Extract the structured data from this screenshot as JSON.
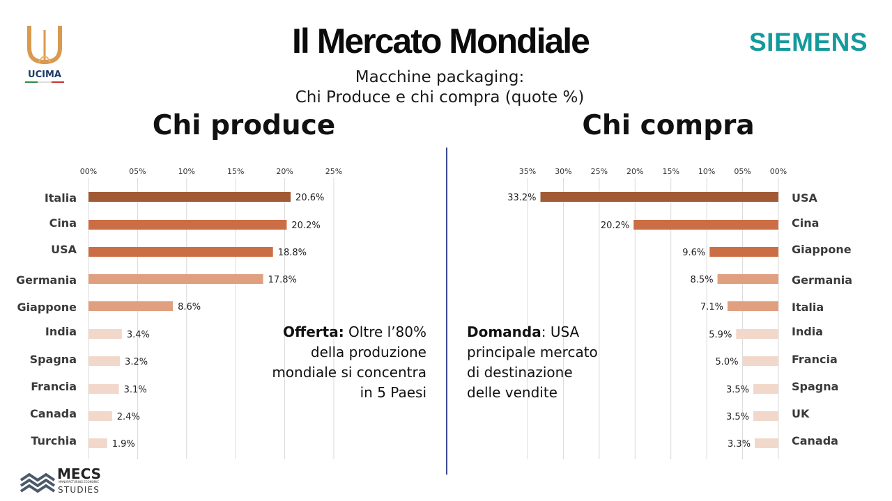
{
  "header": {
    "title": "Il Mercato Mondiale",
    "subtitle_line1": "Macchine packaging:",
    "subtitle_line2": "Chi Produce e chi compra (quote %)"
  },
  "logos": {
    "ucima": "UCIMA",
    "siemens": "SIEMENS",
    "mecs_line1": "MECS",
    "mecs_line2": "STUDIES",
    "mecs_tiny": "MANUFACTURING ECONOMIC"
  },
  "notes": {
    "offerta_bold": "Offerta:",
    "offerta_text": "Oltre l’80% della produzione mondiale si concentra in 5 Paesi",
    "domanda_bold": "Domanda",
    "domanda_text": ": USA principale mercato di destinazione delle vendite"
  },
  "colors": {
    "accent_dark": "#a25a35",
    "accent_mid": "#cc6e45",
    "accent_light": "#e0a080",
    "accent_pale": "#ebc2aa",
    "accent_faint": "#f2d8cb",
    "siemens_teal": "#159a9c",
    "divider": "#3b4a8c"
  },
  "chart_data": [
    {
      "type": "bar",
      "orientation": "horizontal",
      "title": "Chi produce",
      "categories": [
        "Italia",
        "Cina",
        "USA",
        "Germania",
        "Giappone",
        "India",
        "Spagna",
        "Francia",
        "Canada",
        "Turchia"
      ],
      "values": [
        20.6,
        20.2,
        18.8,
        17.8,
        8.6,
        3.4,
        3.2,
        3.1,
        2.4,
        1.9
      ],
      "value_labels": [
        "20.6%",
        "20.2%",
        "18.8%",
        "17.8%",
        "8.6%",
        "3.4%",
        "3.2%",
        "3.1%",
        "2.4%",
        "1.9%"
      ],
      "colors": [
        "#a25a35",
        "#cc6e45",
        "#cc6e45",
        "#e0a080",
        "#e0a080",
        "#f2d8cb",
        "#f2d8cb",
        "#f2d8cb",
        "#f2d8cb",
        "#f2d8cb"
      ],
      "xlim": [
        0,
        25
      ],
      "ticks": [
        0,
        5,
        10,
        15,
        20,
        25
      ],
      "tick_labels": [
        "00%",
        "05%",
        "10%",
        "15%",
        "20%",
        "25%"
      ],
      "axis_position": "top",
      "grid": true,
      "direction": "left-to-right"
    },
    {
      "type": "bar",
      "orientation": "horizontal",
      "title": "Chi compra",
      "categories": [
        "USA",
        "Cina",
        "Giappone",
        "Germania",
        "Italia",
        "India",
        "Francia",
        "Spagna",
        "UK",
        "Canada"
      ],
      "values": [
        33.2,
        20.2,
        9.6,
        8.5,
        7.1,
        5.9,
        5.0,
        3.5,
        3.5,
        3.3
      ],
      "value_labels": [
        "33.2%",
        "20.2%",
        "9.6%",
        "8.5%",
        "7.1%",
        "5.9%",
        "5.0%",
        "3.5%",
        "3.5%",
        "3.3%"
      ],
      "colors": [
        "#a25a35",
        "#cc6e45",
        "#cc6e45",
        "#e0a080",
        "#e0a080",
        "#f2d8cb",
        "#f2d8cb",
        "#f2d8cb",
        "#f2d8cb",
        "#f2d8cb"
      ],
      "xlim": [
        0,
        35
      ],
      "ticks": [
        35,
        30,
        25,
        20,
        15,
        10,
        5,
        0
      ],
      "tick_labels": [
        "35%",
        "30%",
        "25%",
        "20%",
        "15%",
        "10%",
        "05%",
        "00%"
      ],
      "axis_position": "top",
      "grid": true,
      "direction": "right-to-left"
    }
  ]
}
